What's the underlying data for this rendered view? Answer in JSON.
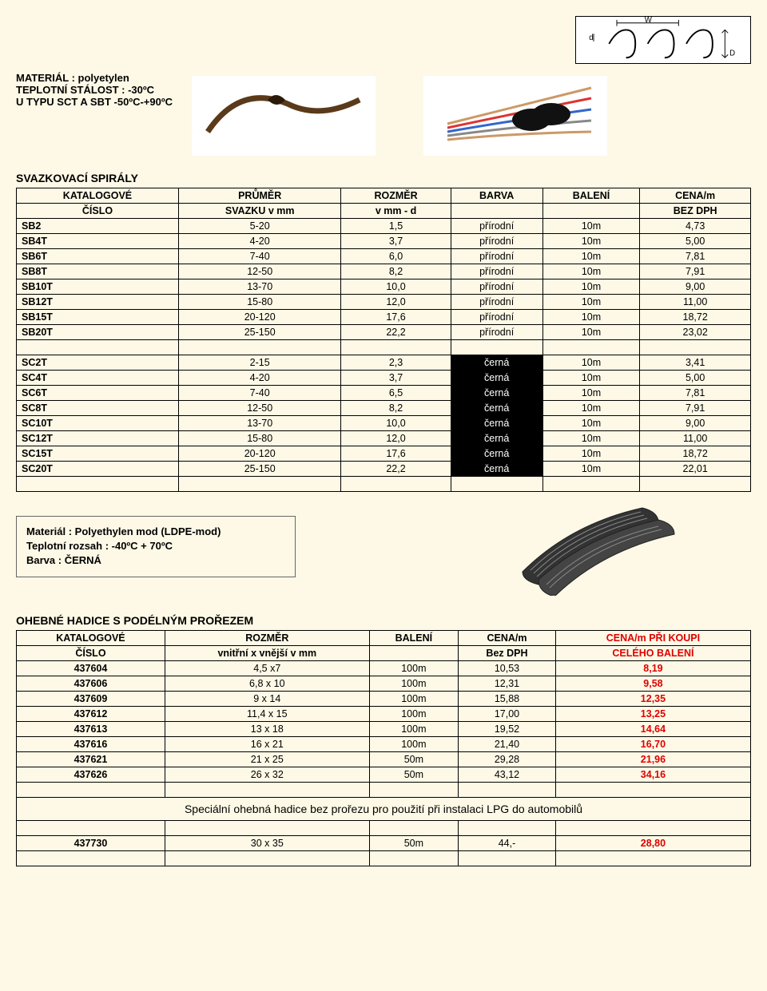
{
  "specs": {
    "line1": "MATERIÁL : polyetylen",
    "line2": "TEPLOTNÍ STÁLOST : -30ºC",
    "line3": "U TYPU SCT A SBT -50ºC-+90ºC"
  },
  "diagram_labels": {
    "w": "W",
    "d": "d",
    "D": "D"
  },
  "table1": {
    "heading": "SVAZKOVACÍ SPIRÁLY",
    "header_top": [
      "KATALOGOVÉ",
      "PRŮMĚR",
      "ROZMĚR",
      "BARVA",
      "BALENÍ",
      "CENA/m"
    ],
    "header_bot": [
      "ČÍSLO",
      "SVAZKU v mm",
      "v mm - d",
      "",
      "",
      "BEZ DPH"
    ],
    "rows_natural": [
      [
        "SB2",
        "5-20",
        "1,5",
        "přírodní",
        "10m",
        "4,73"
      ],
      [
        "SB4T",
        "4-20",
        "3,7",
        "přírodní",
        "10m",
        "5,00"
      ],
      [
        "SB6T",
        "7-40",
        "6,0",
        "přírodní",
        "10m",
        "7,81"
      ],
      [
        "SB8T",
        "12-50",
        "8,2",
        "přírodní",
        "10m",
        "7,91"
      ],
      [
        "SB10T",
        "13-70",
        "10,0",
        "přírodní",
        "10m",
        "9,00"
      ],
      [
        "SB12T",
        "15-80",
        "12,0",
        "přírodní",
        "10m",
        "11,00"
      ],
      [
        "SB15T",
        "20-120",
        "17,6",
        "přírodní",
        "10m",
        "18,72"
      ],
      [
        "SB20T",
        "25-150",
        "22,2",
        "přírodní",
        "10m",
        "23,02"
      ]
    ],
    "rows_black": [
      [
        "SC2T",
        "2-15",
        "2,3",
        "černá",
        "10m",
        "3,41"
      ],
      [
        "SC4T",
        "4-20",
        "3,7",
        "černá",
        "10m",
        "5,00"
      ],
      [
        "SC6T",
        "7-40",
        "6,5",
        "černá",
        "10m",
        "7,81"
      ],
      [
        "SC8T",
        "12-50",
        "8,2",
        "černá",
        "10m",
        "7,91"
      ],
      [
        "SC10T",
        "13-70",
        "10,0",
        "černá",
        "10m",
        "9,00"
      ],
      [
        "SC12T",
        "15-80",
        "12,0",
        "černá",
        "10m",
        "11,00"
      ],
      [
        "SC15T",
        "20-120",
        "17,6",
        "černá",
        "10m",
        "18,72"
      ],
      [
        "SC20T",
        "25-150",
        "22,2",
        "černá",
        "10m",
        "22,01"
      ]
    ]
  },
  "matbox": {
    "l1": "Materiál : Polyethylen mod (LDPE-mod)",
    "l2": "Teplotní rozsah : -40ºC + 70ºC",
    "l3": "Barva : ČERNÁ"
  },
  "table2": {
    "heading": "OHEBNÉ HADICE S PODÉLNÝM PROŘEZEM",
    "header_top": [
      "KATALOGOVÉ",
      "ROZMĚR",
      "BALENÍ",
      "CENA/m",
      "CENA/m PŘI KOUPI"
    ],
    "header_bot": [
      "ČÍSLO",
      "vnitřní x vnější v mm",
      "",
      "Bez DPH",
      "CELÉHO BALENÍ"
    ],
    "rows": [
      [
        "437604",
        "4,5 x7",
        "100m",
        "10,53",
        "8,19"
      ],
      [
        "437606",
        "6,8 x 10",
        "100m",
        "12,31",
        "9,58"
      ],
      [
        "437609",
        "9 x 14",
        "100m",
        "15,88",
        "12,35"
      ],
      [
        "437612",
        "11,4 x 15",
        "100m",
        "17,00",
        "13,25"
      ],
      [
        "437613",
        "13 x 18",
        "100m",
        "19,52",
        "14,64"
      ],
      [
        "437616",
        "16 x 21",
        "100m",
        "21,40",
        "16,70"
      ],
      [
        "437621",
        "21 x 25",
        "50m",
        "29,28",
        "21,96"
      ],
      [
        "437626",
        "26 x 32",
        "50m",
        "43,12",
        "34,16"
      ]
    ],
    "note": "Speciální ohebná hadice bez prořezu pro použití při instalaci LPG do automobilů",
    "row_last": [
      "437730",
      "30 x 35",
      "50m",
      "44,-",
      "28,80"
    ]
  },
  "colors": {
    "page_bg": "#fdf9e6",
    "border": "#000000",
    "red": "#e00000",
    "black_cell_bg": "#000000",
    "black_cell_fg": "#ffffff"
  },
  "fonts": {
    "body_pt": 13,
    "heading_pt": 14
  }
}
